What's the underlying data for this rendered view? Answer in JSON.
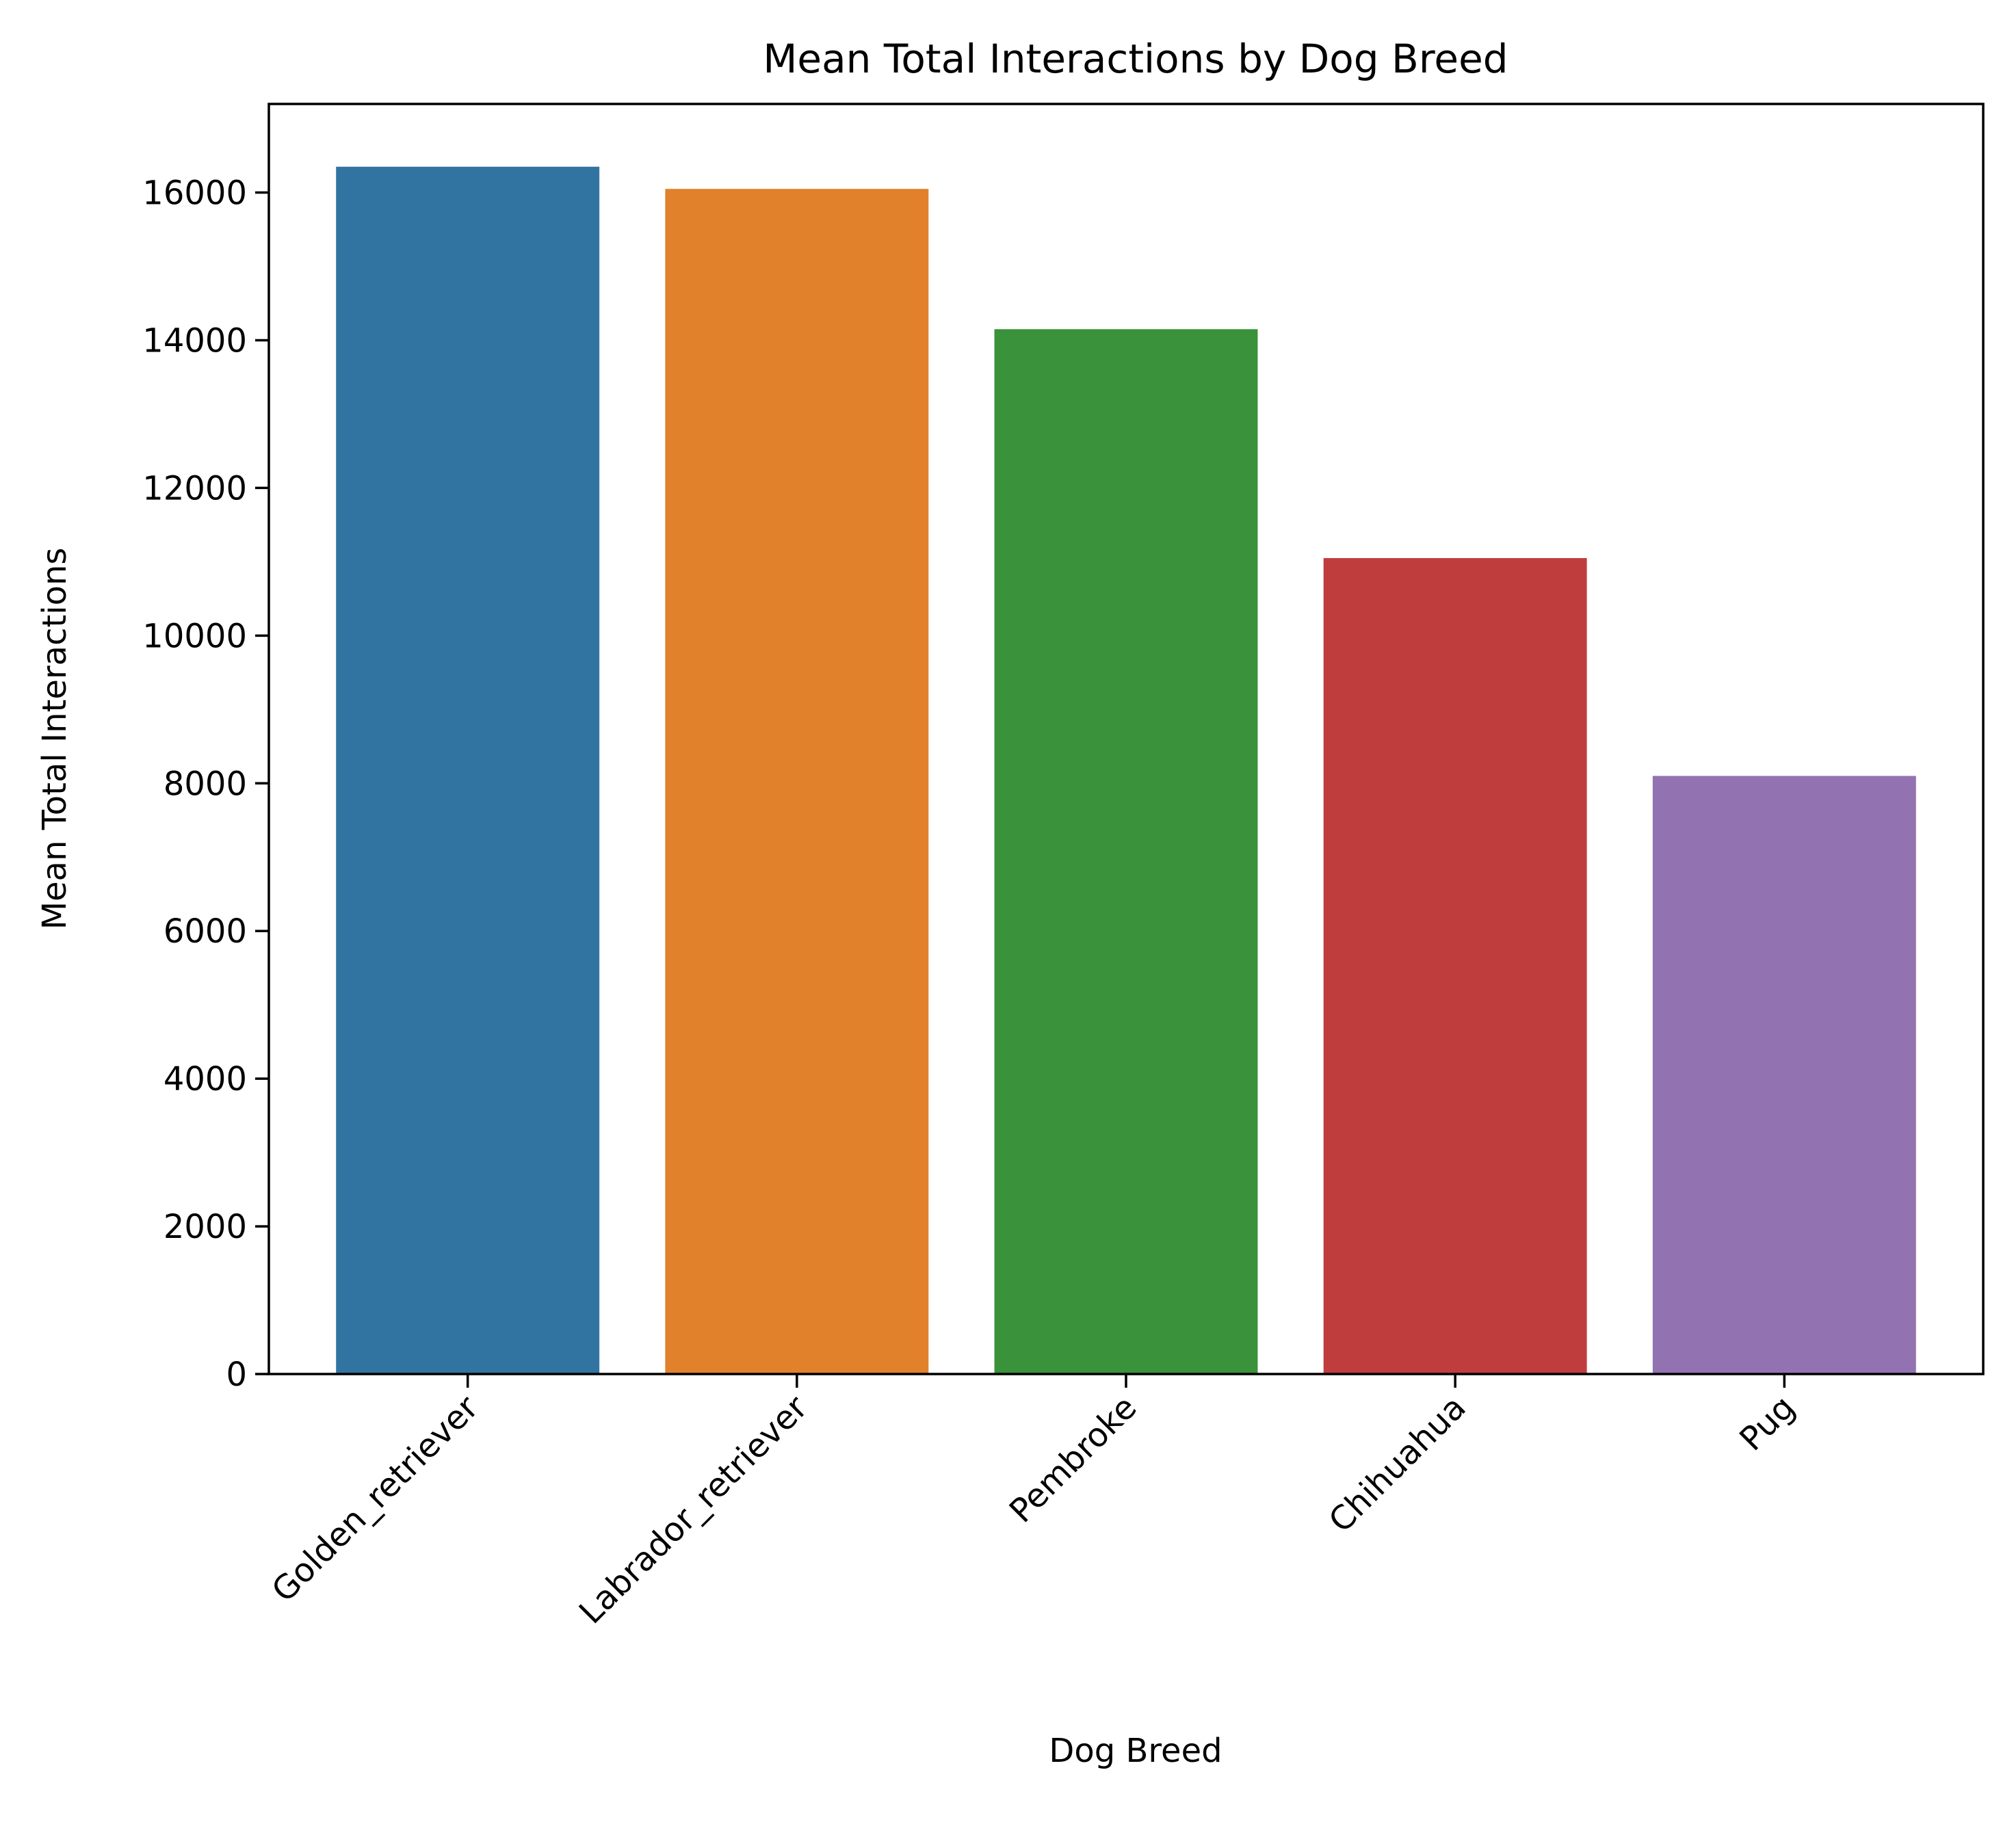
{
  "chart_data": {
    "type": "bar",
    "title": "Mean Total Interactions by Dog Breed",
    "xlabel": "Dog Breed",
    "ylabel": "Mean Total Interactions",
    "categories": [
      "Golden_retriever",
      "Labrador_retriever",
      "Pembroke",
      "Chihuahua",
      "Pug"
    ],
    "values": [
      16350,
      16050,
      14150,
      11050,
      8100
    ],
    "colors": [
      "#3274A1",
      "#E1812C",
      "#3A923A",
      "#C03D3E",
      "#9372B2"
    ],
    "ylim": [
      0,
      17200
    ],
    "yticks": [
      0,
      2000,
      4000,
      6000,
      8000,
      10000,
      12000,
      14000,
      16000
    ],
    "grid": false,
    "legend": "none"
  }
}
